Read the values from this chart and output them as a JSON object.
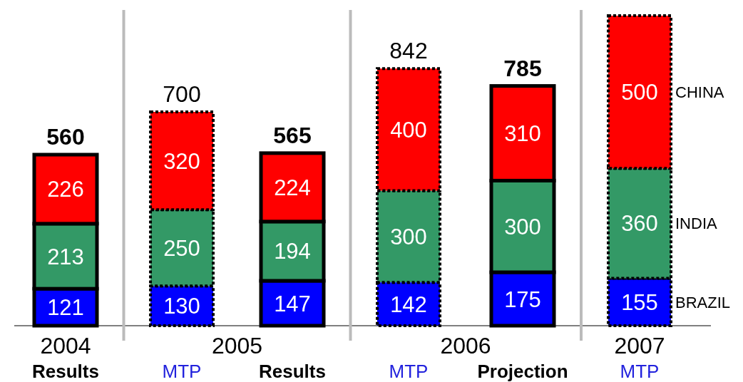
{
  "chart_data": {
    "type": "bar",
    "stacked": true,
    "data_labels": true,
    "categories": [
      "Results",
      "MTP",
      "Results",
      "MTP",
      "Projection",
      "MTP"
    ],
    "series": [
      {
        "name": "BRAZIL",
        "color": "#0000ff",
        "values": [
          121,
          130,
          147,
          142,
          175,
          155
        ]
      },
      {
        "name": "INDIA",
        "color": "#339966",
        "values": [
          213,
          250,
          194,
          300,
          300,
          360
        ]
      },
      {
        "name": "CHINA",
        "color": "#ff0000",
        "values": [
          226,
          320,
          224,
          400,
          310,
          500
        ]
      }
    ],
    "totals": [
      "560",
      "700",
      "565",
      "842",
      "785",
      null
    ],
    "annotations": [
      "2004",
      "2005",
      "2006",
      "2007"
    ]
  }
}
